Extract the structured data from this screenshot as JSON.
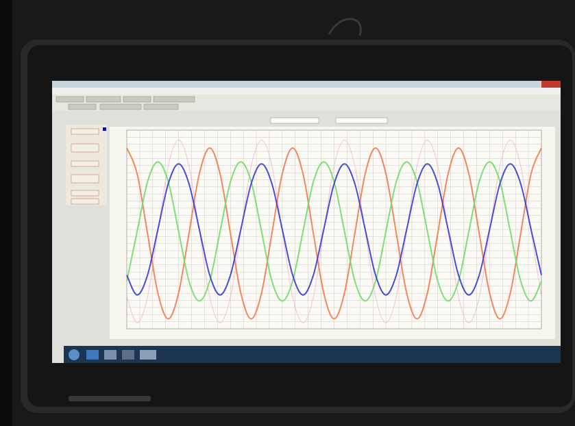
{
  "chart_data": {
    "type": "line",
    "ylim": [
      0,
      100
    ],
    "series": [
      {
        "color": "#f0a6d0",
        "values": [
          16,
          3,
          16,
          49,
          82,
          95,
          82,
          49,
          16,
          3,
          16,
          49,
          82,
          95,
          82,
          49,
          16,
          3,
          16,
          49,
          82,
          95,
          82,
          49,
          16,
          3,
          16,
          49,
          82,
          95,
          82,
          49,
          16,
          3,
          16,
          49,
          82,
          95,
          82,
          49,
          16
        ]
      },
      {
        "color": "#f07a50",
        "values": [
          91,
          78,
          48,
          18,
          5,
          18,
          48,
          78,
          91,
          78,
          48,
          18,
          5,
          18,
          48,
          78,
          91,
          78,
          48,
          18,
          5,
          18,
          48,
          78,
          91,
          78,
          48,
          18,
          5,
          18,
          48,
          78,
          91,
          78,
          48,
          18,
          5,
          18,
          48,
          78,
          91
        ]
      },
      {
        "color": "#6edc6e",
        "values": [
          24,
          49,
          74,
          84,
          74,
          49,
          24,
          14,
          24,
          49,
          74,
          84,
          74,
          49,
          24,
          14,
          24,
          49,
          74,
          84,
          74,
          49,
          24,
          14,
          24,
          49,
          74,
          84,
          74,
          49,
          24,
          14,
          24,
          49,
          74,
          84,
          74,
          49,
          24,
          14,
          24
        ]
      },
      {
        "color": "#3a3ad0",
        "values": [
          27,
          17,
          27,
          50,
          73,
          83,
          73,
          50,
          27,
          17,
          27,
          50,
          73,
          83,
          73,
          50,
          27,
          17,
          27,
          50,
          73,
          83,
          73,
          50,
          27,
          17,
          27,
          50,
          73,
          83,
          73,
          50,
          27,
          17,
          27,
          50,
          73,
          83,
          73,
          50,
          27
        ]
      }
    ]
  }
}
